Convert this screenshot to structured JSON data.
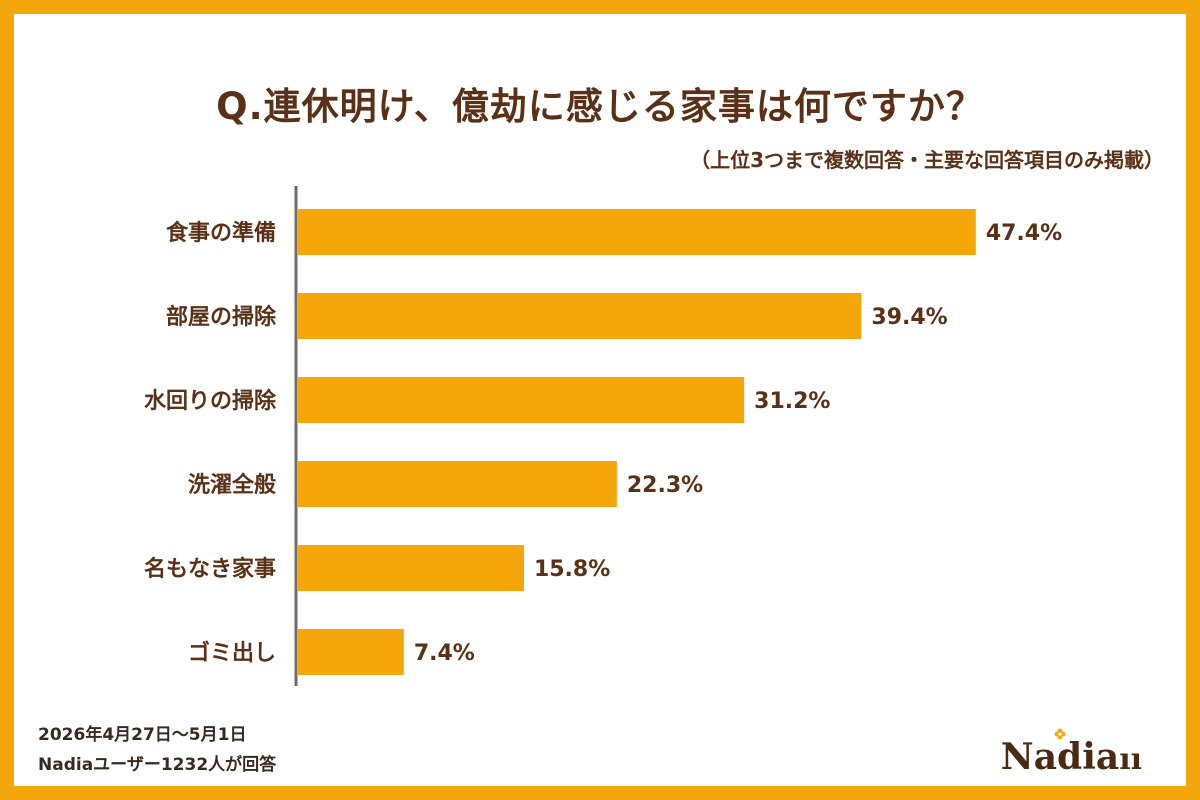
{
  "chart_data": {
    "type": "bar",
    "orientation": "horizontal",
    "title": "Q.連休明け、億劫に感じる家事は何ですか？",
    "subtitle": "（上位3つまで複数回答・主要な回答項目のみ掲載）",
    "categories": [
      "食事の準備",
      "部屋の掃除",
      "水回りの掃除",
      "洗濯全般",
      "名もなき家事",
      "ゴミ出し"
    ],
    "values": [
      47.4,
      39.4,
      31.2,
      22.3,
      15.8,
      7.4
    ],
    "value_labels": [
      "47.4%",
      "39.4%",
      "31.2%",
      "22.3%",
      "15.8%",
      "7.4%"
    ],
    "unit": "%",
    "xlim": [
      0,
      60
    ],
    "grid": false,
    "bar_color": "#f5a60a"
  },
  "footnote": {
    "date": "2026年4月27日～5月1日",
    "respondents": "Nadiaユーザー1232人が回答"
  },
  "logo": {
    "text": "Nadia"
  },
  "colors": {
    "frame": "#f5a60a",
    "text": "#5a3116",
    "axis": "#6b6b6b"
  }
}
